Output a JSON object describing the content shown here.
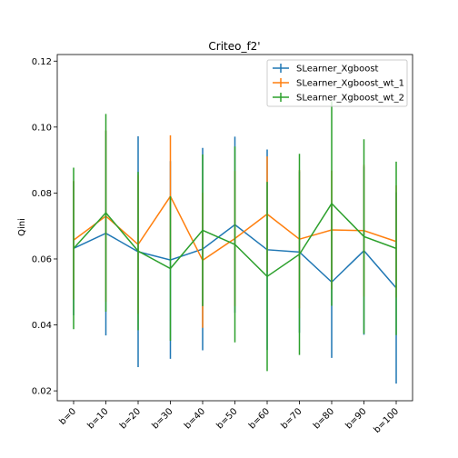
{
  "chart_data": {
    "type": "line",
    "title": "Criteo_f2'",
    "xlabel": "",
    "ylabel": "Qini",
    "categories": [
      "b=0",
      "b=10",
      "b=20",
      "b=30",
      "b=40",
      "b=50",
      "b=60",
      "b=70",
      "b=80",
      "b=90",
      "b=100"
    ],
    "ylim": [
      0.017,
      0.122
    ],
    "yticks": [
      0.02,
      0.04,
      0.06,
      0.08,
      0.1,
      0.12
    ],
    "ytick_labels": [
      "0.02",
      "0.04",
      "0.06",
      "0.08",
      "0.10",
      "0.12"
    ],
    "grid": false,
    "legend_position": "upper-right",
    "series": [
      {
        "name": "SLearner_Xgboost",
        "color": "#1f77b4",
        "values": [
          0.0632,
          0.0678,
          0.0622,
          0.0597,
          0.063,
          0.0704,
          0.0628,
          0.0621,
          0.053,
          0.0625,
          0.0512
        ],
        "errors": [
          0.0203,
          0.031,
          0.035,
          0.03,
          0.0307,
          0.0267,
          0.0304,
          0.0245,
          0.023,
          0.0255,
          0.029
        ]
      },
      {
        "name": "SLearner_Xgboost_wt_1",
        "color": "#ff7f0e",
        "values": [
          0.0657,
          0.073,
          0.0644,
          0.079,
          0.0596,
          0.0662,
          0.0736,
          0.066,
          0.0688,
          0.0686,
          0.0653
        ],
        "errors": [
          0.018,
          0.026,
          0.021,
          0.0185,
          0.0205,
          0.0205,
          0.0175,
          0.021,
          0.018,
          0.02,
          0.017
        ]
      },
      {
        "name": "SLearner_Xgboost_wt_2",
        "color": "#2ca02c",
        "values": [
          0.0632,
          0.074,
          0.0624,
          0.0571,
          0.0687,
          0.0644,
          0.0547,
          0.0614,
          0.0768,
          0.0668,
          0.0632
        ],
        "errors": [
          0.0245,
          0.03,
          0.024,
          0.0219,
          0.023,
          0.0297,
          0.0287,
          0.0305,
          0.031,
          0.0295,
          0.0263
        ]
      }
    ]
  }
}
